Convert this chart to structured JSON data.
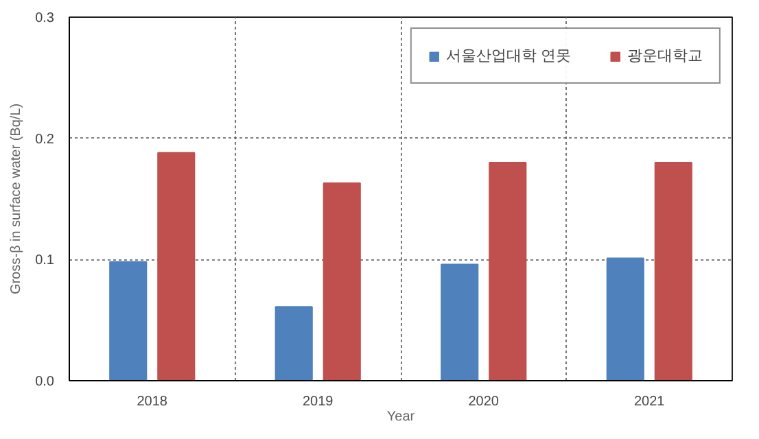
{
  "chart_data": {
    "type": "bar",
    "xlabel": "Year",
    "ylabel": "Gross-β in surface water (Bq/L)",
    "categories": [
      "2018",
      "2019",
      "2020",
      "2021"
    ],
    "series": [
      {
        "name": "서울산업대학 연못",
        "color": "#4f81bd",
        "values": [
          0.098,
          0.061,
          0.096,
          0.101
        ]
      },
      {
        "name": "광운대학교",
        "color": "#c0504d",
        "values": [
          0.188,
          0.163,
          0.18,
          0.18
        ]
      }
    ],
    "ylim": [
      0,
      0.3
    ],
    "yticks": [
      {
        "value": 0,
        "label": "0.0"
      },
      0.1,
      0.2,
      0.3
    ],
    "grid": true,
    "legend": "top right"
  }
}
